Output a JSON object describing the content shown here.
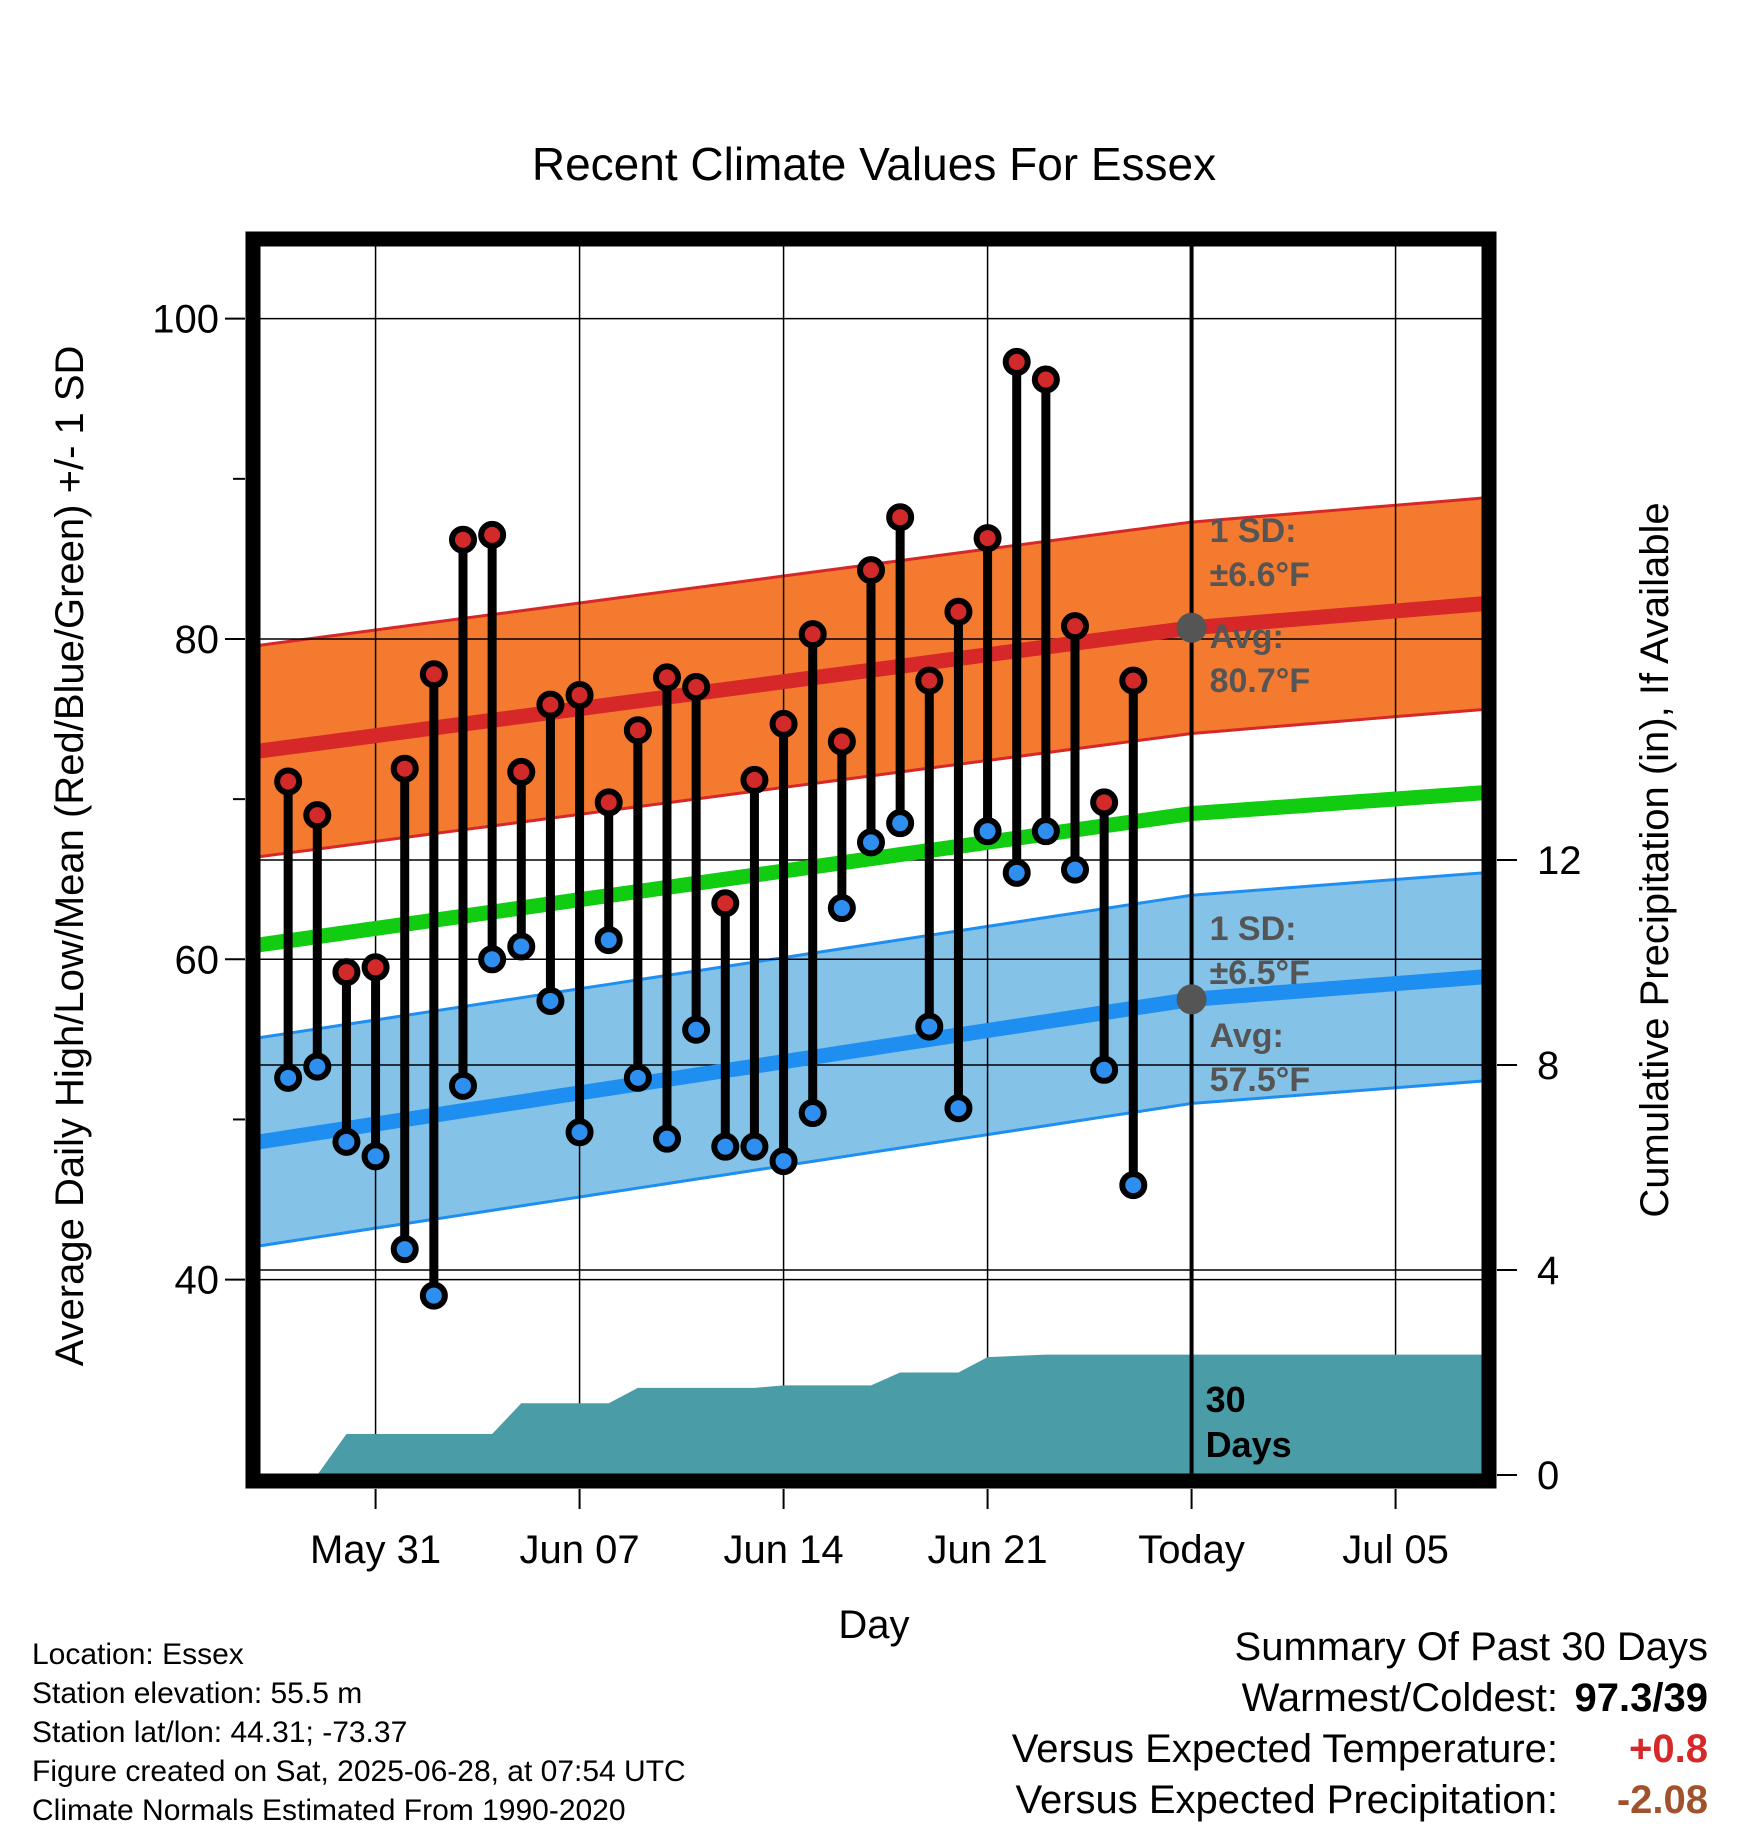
{
  "chart_data": {
    "type": "line",
    "title": "Recent Climate Values For Essex",
    "xlabel": "Day",
    "ylabel": "Average Daily High/Low/Mean (Red/Blue/Green) +/- 1 SD",
    "y2label": "Cumulative Precipitation (in), If Available",
    "ylim": [
      27.8,
      104.6
    ],
    "y2lim": [
      0,
      24
    ],
    "y_ticks": [
      40,
      60,
      80,
      100
    ],
    "y2_ticks": [
      0,
      4,
      8,
      12
    ],
    "x_ticks": [
      {
        "date": "2025-05-31",
        "label": "May 31"
      },
      {
        "date": "2025-06-07",
        "label": "Jun 07"
      },
      {
        "date": "2025-06-14",
        "label": "Jun 14"
      },
      {
        "date": "2025-06-21",
        "label": "Jun 21"
      },
      {
        "date": "2025-06-28",
        "label": "Today"
      },
      {
        "date": "2025-07-05",
        "label": "Jul 05"
      }
    ],
    "xlim": [
      "2025-05-27",
      "2025-07-08"
    ],
    "today": "2025-06-28",
    "grid": true,
    "daily": [
      {
        "date": "2025-05-28",
        "high": 71.1,
        "low": 52.6
      },
      {
        "date": "2025-05-29",
        "high": 69.0,
        "low": 53.3
      },
      {
        "date": "2025-05-30",
        "high": 59.2,
        "low": 48.6
      },
      {
        "date": "2025-05-31",
        "high": 59.5,
        "low": 47.7
      },
      {
        "date": "2025-06-01",
        "high": 71.9,
        "low": 41.9
      },
      {
        "date": "2025-06-02",
        "high": 77.8,
        "low": 39.0
      },
      {
        "date": "2025-06-03",
        "high": 86.2,
        "low": 52.1
      },
      {
        "date": "2025-06-04",
        "high": 86.5,
        "low": 60.0
      },
      {
        "date": "2025-06-05",
        "high": 71.7,
        "low": 60.8
      },
      {
        "date": "2025-06-06",
        "high": 75.9,
        "low": 57.4
      },
      {
        "date": "2025-06-07",
        "high": 76.5,
        "low": 49.2
      },
      {
        "date": "2025-06-08",
        "high": 69.8,
        "low": 61.2
      },
      {
        "date": "2025-06-09",
        "high": 74.3,
        "low": 52.6
      },
      {
        "date": "2025-06-10",
        "high": 77.6,
        "low": 48.8
      },
      {
        "date": "2025-06-11",
        "high": 77.0,
        "low": 55.6
      },
      {
        "date": "2025-06-12",
        "high": 63.5,
        "low": 48.3
      },
      {
        "date": "2025-06-13",
        "high": 71.2,
        "low": 48.3
      },
      {
        "date": "2025-06-14",
        "high": 74.7,
        "low": 47.4
      },
      {
        "date": "2025-06-15",
        "high": 80.3,
        "low": 50.4
      },
      {
        "date": "2025-06-16",
        "high": 73.6,
        "low": 63.2
      },
      {
        "date": "2025-06-17",
        "high": 84.3,
        "low": 67.3
      },
      {
        "date": "2025-06-18",
        "high": 87.6,
        "low": 68.5
      },
      {
        "date": "2025-06-19",
        "high": 77.4,
        "low": 55.8
      },
      {
        "date": "2025-06-20",
        "high": 81.7,
        "low": 50.7
      },
      {
        "date": "2025-06-21",
        "high": 86.3,
        "low": 68.0
      },
      {
        "date": "2025-06-22",
        "high": 97.3,
        "low": 65.4
      },
      {
        "date": "2025-06-23",
        "high": 96.2,
        "low": 68.0
      },
      {
        "date": "2025-06-24",
        "high": 80.8,
        "low": 65.6
      },
      {
        "date": "2025-06-25",
        "high": 69.8,
        "low": 53.1
      },
      {
        "date": "2025-06-26",
        "high": 77.4,
        "low": 45.9
      }
    ],
    "normal_high": {
      "start": 73.0,
      "today": 80.7,
      "end": 82.2,
      "sd": 6.6
    },
    "normal_low": {
      "start": 48.6,
      "today": 57.5,
      "end": 58.9,
      "sd": 6.5
    },
    "normal_mean": {
      "start": 60.9,
      "today": 69.1,
      "end": 70.4
    },
    "precip_cumulative": [
      {
        "date": "2025-05-28",
        "value": 0
      },
      {
        "date": "2025-05-29",
        "value": 0
      },
      {
        "date": "2025-05-30",
        "value": 0.8
      },
      {
        "date": "2025-06-04",
        "value": 0.8
      },
      {
        "date": "2025-06-05",
        "value": 1.4
      },
      {
        "date": "2025-06-08",
        "value": 1.4
      },
      {
        "date": "2025-06-09",
        "value": 1.7
      },
      {
        "date": "2025-06-13",
        "value": 1.7
      },
      {
        "date": "2025-06-14",
        "value": 1.75
      },
      {
        "date": "2025-06-17",
        "value": 1.75
      },
      {
        "date": "2025-06-18",
        "value": 2.0
      },
      {
        "date": "2025-06-20",
        "value": 2.0
      },
      {
        "date": "2025-06-21",
        "value": 2.3
      },
      {
        "date": "2025-06-23",
        "value": 2.35
      },
      {
        "date": "2025-07-08",
        "value": 2.35
      }
    ],
    "annotations": {
      "high_sd_label": "1 SD:",
      "high_sd_value": "±6.6°F",
      "high_avg_label": "Avg:",
      "high_avg_value": "80.7°F",
      "low_sd_label": "1 SD:",
      "low_sd_value": "±6.5°F",
      "low_avg_label": "Avg:",
      "low_avg_value": "57.5°F",
      "period_line1": "30",
      "period_line2": "Days"
    },
    "colors": {
      "high_band": "#f47a30",
      "high_line": "#d62828",
      "low_band": "#84c2e7",
      "low_line": "#1e8ff0",
      "mean_line": "#11cc11",
      "high_marker": "#d22a2a",
      "low_marker": "#2e8ff0",
      "precip": "#4a9ca6",
      "avg_marker": "#555555",
      "annotation_text": "#555555"
    }
  },
  "meta": {
    "location": "Location: Essex",
    "elevation": "Station elevation: 55.5 m",
    "latlon": "Station lat/lon: 44.31; -73.37",
    "created": "Figure created on Sat, 2025-06-28, at 07:54 UTC",
    "normals": "Climate Normals Estimated From 1990-2020"
  },
  "summary": {
    "heading": "Summary Of Past 30 Days",
    "warm_cold_label": "Warmest/Coldest:",
    "warm_cold_value": "97.3/39",
    "temp_label": "Versus Expected Temperature:",
    "temp_value": "+0.8",
    "temp_color": "#d62828",
    "precip_label": "Versus Expected Precipitation:",
    "precip_value": "-2.08",
    "precip_color": "#a0522d"
  }
}
